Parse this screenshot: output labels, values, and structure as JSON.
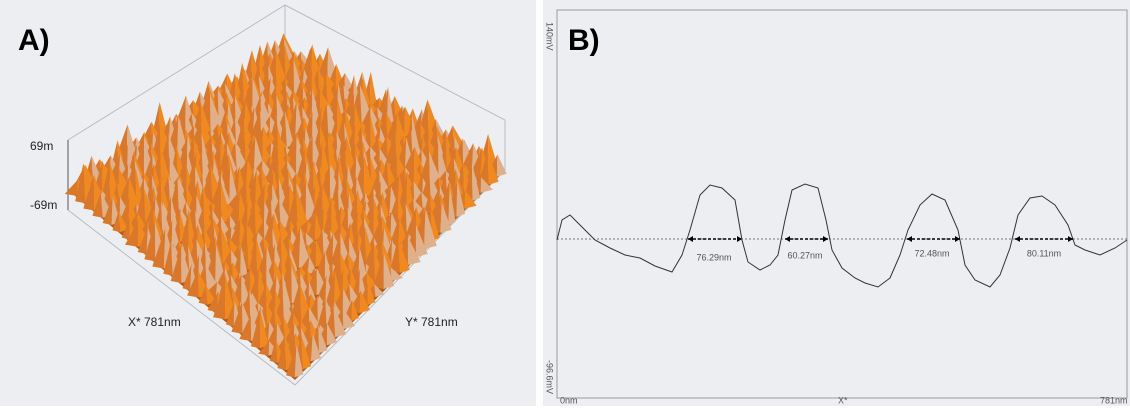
{
  "panel_a": {
    "label": "A)",
    "z_max": "69m",
    "z_min": "-69m",
    "x_axis": "X* 781nm",
    "y_axis": "Y* 781nm"
  },
  "panel_b": {
    "label": "B)",
    "y_max": "140mV",
    "y_min": "-96.6mV",
    "x_start": "0nm",
    "x_label": "X*",
    "x_end": "781nm",
    "measurements": [
      "76.29nm",
      "60.27nm",
      "72.48nm",
      "80.11nm"
    ]
  }
}
